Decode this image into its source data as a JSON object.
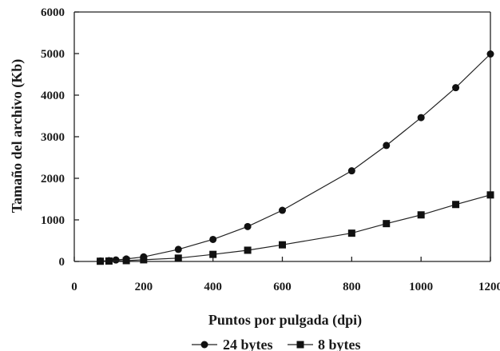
{
  "chart_data": {
    "type": "line",
    "xlabel": "Puntos por pulgada (dpi)",
    "ylabel": "Tamaño del archivo (Kb)",
    "xlim": [
      0,
      1200
    ],
    "ylim": [
      0,
      6000
    ],
    "xticks": [
      0,
      200,
      400,
      600,
      800,
      1000,
      1200
    ],
    "yticks": [
      0,
      1000,
      2000,
      3000,
      4000,
      5000,
      6000
    ],
    "xtick_labels": [
      "0",
      "200",
      "400",
      "600",
      "800",
      "1000",
      "1200"
    ],
    "ytick_labels": [
      "0",
      "1000",
      "2000",
      "3000",
      "4000",
      "5000",
      "6000"
    ],
    "grid": false,
    "legend_position": "bottom",
    "series": [
      {
        "name": "24 bytes",
        "marker": "circle",
        "x": [
          75,
          100,
          120,
          150,
          200,
          300,
          400,
          500,
          600,
          800,
          900,
          1000,
          1100,
          1200
        ],
        "y": [
          10,
          20,
          35,
          60,
          110,
          290,
          530,
          840,
          1230,
          2180,
          2790,
          3460,
          4180,
          4990
        ]
      },
      {
        "name": "8 bytes",
        "marker": "square",
        "x": [
          75,
          100,
          150,
          200,
          300,
          400,
          500,
          600,
          800,
          900,
          1000,
          1100,
          1200
        ],
        "y": [
          5,
          10,
          20,
          40,
          80,
          170,
          270,
          400,
          680,
          910,
          1120,
          1370,
          1600
        ]
      }
    ]
  }
}
